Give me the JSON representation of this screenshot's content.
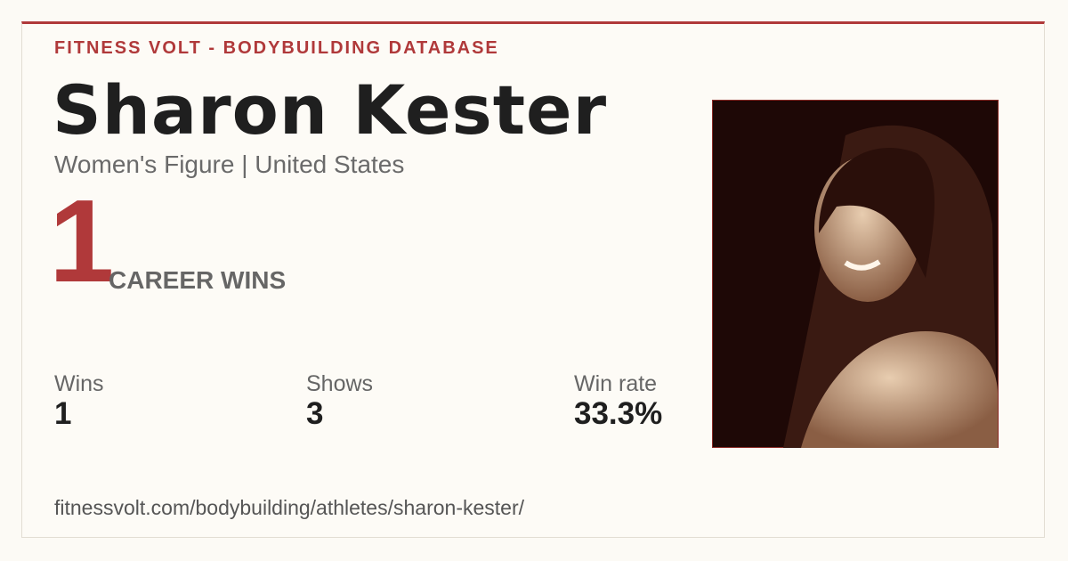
{
  "header": {
    "brand": "FITNESS VOLT - BODYBUILDING DATABASE"
  },
  "athlete": {
    "name": "Sharon Kester",
    "subtitle": "Women's Figure | United States"
  },
  "career": {
    "wins": "1",
    "label": "CAREER WINS"
  },
  "stats": [
    {
      "label": "Wins",
      "value": "1"
    },
    {
      "label": "Shows",
      "value": "3"
    },
    {
      "label": "Win rate",
      "value": "33.3%"
    }
  ],
  "footer": {
    "url": "fitnessvolt.com/bodybuilding/athletes/sharon-kester/"
  }
}
